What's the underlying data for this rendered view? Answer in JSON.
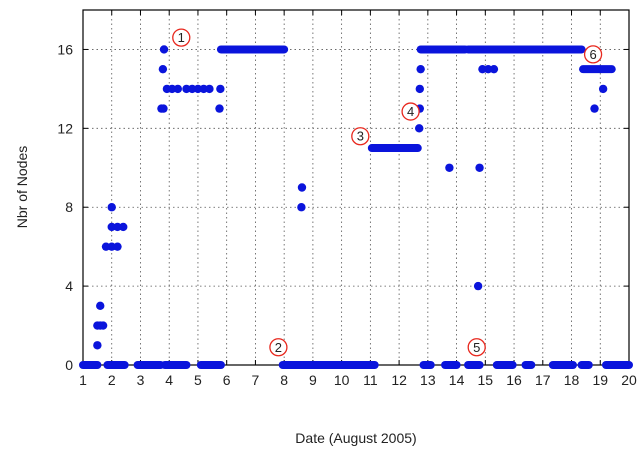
{
  "chart_data": {
    "type": "scatter",
    "title": "",
    "xlabel": "Date (August 2005)",
    "ylabel": "Nbr of Nodes",
    "xlim": [
      1,
      20
    ],
    "ylim": [
      0,
      18
    ],
    "xticks": [
      1,
      2,
      3,
      4,
      5,
      6,
      7,
      8,
      9,
      10,
      11,
      12,
      13,
      14,
      15,
      16,
      17,
      18,
      19,
      20
    ],
    "yticks": [
      0,
      4,
      8,
      12,
      16
    ],
    "grid": true,
    "legend": "none",
    "marker_color": "#0a14dc",
    "annotation_color": "#e8281e",
    "series": [
      {
        "points": [
          [
            1.5,
            1
          ],
          [
            1.5,
            2
          ],
          [
            1.6,
            2
          ],
          [
            1.6,
            3
          ],
          [
            1.7,
            2
          ],
          [
            1.8,
            6
          ],
          [
            2.0,
            6
          ],
          [
            2.2,
            6
          ],
          [
            2.0,
            7
          ],
          [
            2.2,
            7
          ],
          [
            2.4,
            7
          ],
          [
            2.0,
            8
          ],
          [
            3.73,
            13
          ],
          [
            3.8,
            13
          ],
          [
            3.78,
            15
          ],
          [
            3.82,
            16
          ],
          [
            3.92,
            14
          ],
          [
            4.1,
            14
          ],
          [
            4.3,
            14
          ],
          [
            4.6,
            14
          ],
          [
            4.8,
            14
          ],
          [
            5.0,
            14
          ],
          [
            5.2,
            14
          ],
          [
            5.4,
            14
          ],
          [
            5.75,
            13
          ],
          [
            5.78,
            14
          ],
          [
            8.6,
            8
          ],
          [
            8.62,
            9
          ],
          [
            12.7,
            12
          ],
          [
            12.72,
            13
          ],
          [
            12.72,
            14
          ],
          [
            12.75,
            15
          ],
          [
            13.75,
            10
          ],
          [
            14.75,
            4
          ],
          [
            14.8,
            10
          ],
          [
            14.9,
            15
          ],
          [
            15.1,
            15
          ],
          [
            15.3,
            15
          ],
          [
            18.8,
            13
          ],
          [
            19.1,
            14
          ]
        ],
        "segments": [
          [
            1.0,
            1.5,
            0
          ],
          [
            1.85,
            2.45,
            0
          ],
          [
            2.9,
            3.7,
            0
          ],
          [
            3.85,
            4.6,
            0
          ],
          [
            5.1,
            5.8,
            0
          ],
          [
            7.95,
            11.15,
            0
          ],
          [
            12.85,
            13.1,
            0
          ],
          [
            13.6,
            14.0,
            0
          ],
          [
            14.4,
            14.8,
            0
          ],
          [
            15.4,
            15.95,
            0
          ],
          [
            16.4,
            16.6,
            0
          ],
          [
            17.35,
            18.05,
            0
          ],
          [
            18.35,
            18.6,
            0
          ],
          [
            19.2,
            20.0,
            0
          ],
          [
            5.8,
            8.0,
            16
          ],
          [
            12.75,
            14.3,
            16
          ],
          [
            14.4,
            18.35,
            16
          ],
          [
            11.05,
            12.65,
            11
          ],
          [
            18.4,
            19.4,
            15
          ]
        ]
      }
    ],
    "annotations": [
      {
        "label": "1",
        "x": 4.42,
        "y": 16.6
      },
      {
        "label": "2",
        "x": 7.8,
        "y": 0.9
      },
      {
        "label": "3",
        "x": 10.65,
        "y": 11.6
      },
      {
        "label": "4",
        "x": 12.4,
        "y": 12.85
      },
      {
        "label": "5",
        "x": 14.7,
        "y": 0.9
      },
      {
        "label": "6",
        "x": 18.75,
        "y": 15.75
      }
    ]
  }
}
